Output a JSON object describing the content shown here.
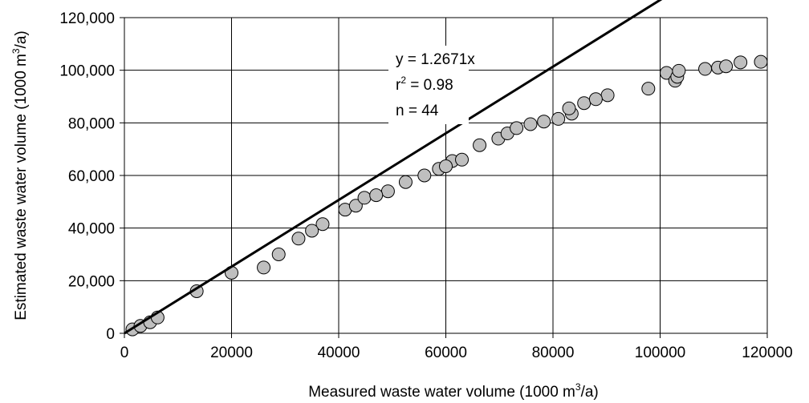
{
  "chart_data": {
    "type": "scatter",
    "title": "",
    "xlabel": "Measured waste water volume (1000 m³/a)",
    "ylabel": "Estimated waste water volume (1000 m³/a)",
    "x_ticks": [
      "0",
      "20000",
      "40000",
      "60000",
      "80000",
      "100000",
      "120000"
    ],
    "y_ticks": [
      "0",
      "20,000",
      "40,000",
      "60,000",
      "80,000",
      "100,000",
      "120,000"
    ],
    "xlim": [
      0,
      120000
    ],
    "ylim": [
      0,
      120000
    ],
    "grid": true,
    "legend": "none",
    "marker_color": "#bfbfbf",
    "line_color": "#000000",
    "series": [
      {
        "values": [
          [
            1500,
            1500
          ],
          [
            3000,
            2800
          ],
          [
            4800,
            4200
          ],
          [
            6200,
            6000
          ],
          [
            13500,
            16000
          ],
          [
            20000,
            23000
          ],
          [
            26000,
            25000
          ],
          [
            28800,
            30000
          ],
          [
            32500,
            36000
          ],
          [
            37000,
            41500
          ],
          [
            41200,
            47000
          ],
          [
            43200,
            48500
          ],
          [
            44800,
            51500
          ],
          [
            49200,
            54000
          ],
          [
            52500,
            57500
          ],
          [
            58700,
            62500
          ],
          [
            61200,
            65500
          ],
          [
            63000,
            66000
          ],
          [
            66300,
            71500
          ],
          [
            69800,
            74000
          ],
          [
            71500,
            76000
          ],
          [
            73200,
            78000
          ],
          [
            75800,
            79500
          ],
          [
            78300,
            80500
          ],
          [
            81000,
            81500
          ],
          [
            83500,
            83500
          ],
          [
            83000,
            85500
          ],
          [
            85800,
            87500
          ],
          [
            90200,
            90500
          ],
          [
            97800,
            93000
          ],
          [
            101200,
            99000
          ],
          [
            102800,
            96000
          ],
          [
            103200,
            97500
          ],
          [
            103500,
            99800
          ],
          [
            108400,
            100500
          ],
          [
            110800,
            101000
          ],
          [
            112300,
            101500
          ],
          [
            115000,
            103000
          ],
          [
            118800,
            103200
          ],
          [
            60000,
            63500
          ],
          [
            56000,
            60000
          ],
          [
            47000,
            52500
          ],
          [
            35000,
            39000
          ],
          [
            88000,
            89000
          ]
        ]
      }
    ],
    "trendline": {
      "slope": 1.2671,
      "x_range": [
        0,
        118800
      ]
    },
    "annotations": {
      "equation": "y = 1.2671x",
      "r_prefix": "r",
      "r_sup": "2",
      "r_suffix": " = 0.98",
      "n": "n = 44"
    }
  }
}
